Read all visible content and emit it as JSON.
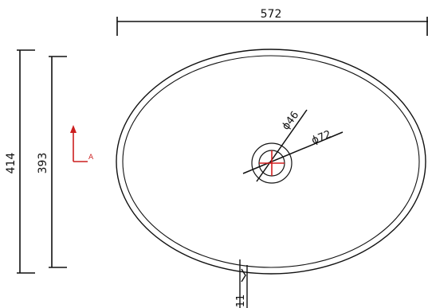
{
  "dimensions": {
    "width_top": "572",
    "height_outer": "414",
    "height_inner": "393",
    "drain_inner_diameter": "ϕ46",
    "drain_outer_diameter": "ϕ72",
    "bottom_label": "11"
  },
  "section_marker": {
    "label": "A",
    "color": "#cc1f1f"
  },
  "colors": {
    "line": "#111111",
    "center_mark": "#d21f1f"
  }
}
